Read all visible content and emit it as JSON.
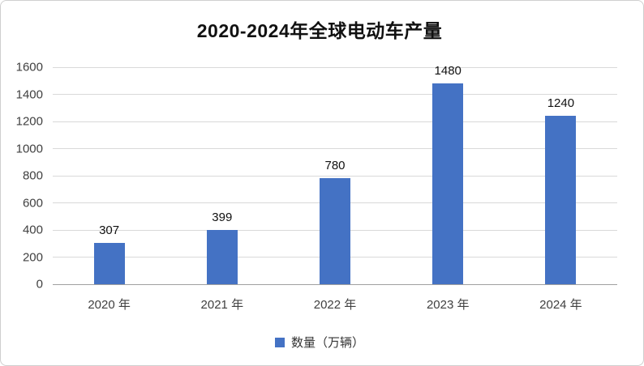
{
  "chart_data": {
    "type": "bar",
    "title": "2020-2024年全球电动车产量",
    "categories": [
      "2020 年",
      "2021 年",
      "2022 年",
      "2023 年",
      "2024 年"
    ],
    "values": [
      307,
      399,
      780,
      1480,
      1240
    ],
    "series_name": "数量（万辆）",
    "ylim": [
      0,
      1600
    ],
    "yticks": [
      0,
      200,
      400,
      600,
      800,
      1000,
      1200,
      1400,
      1600
    ],
    "grid": true,
    "legend_position": "bottom",
    "bar_color": "#4472C4",
    "gridline_color": "#d9d9d9"
  }
}
